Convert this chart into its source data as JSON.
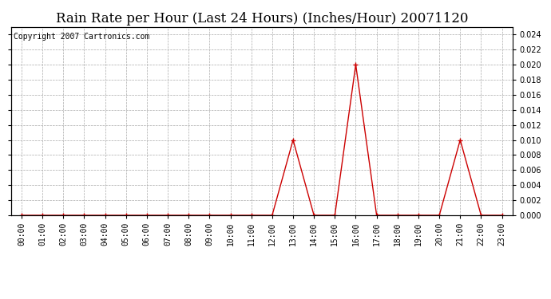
{
  "title": "Rain Rate per Hour (Last 24 Hours) (Inches/Hour) 20071120",
  "copyright_text": "Copyright 2007 Cartronics.com",
  "hours": [
    0,
    1,
    2,
    3,
    4,
    5,
    6,
    7,
    8,
    9,
    10,
    11,
    12,
    13,
    14,
    15,
    16,
    17,
    18,
    19,
    20,
    21,
    22,
    23
  ],
  "tick_labels": [
    "00:00",
    "01:00",
    "02:00",
    "03:00",
    "04:00",
    "05:00",
    "06:00",
    "07:00",
    "08:00",
    "09:00",
    "10:00",
    "11:00",
    "12:00",
    "13:00",
    "14:00",
    "15:00",
    "16:00",
    "17:00",
    "18:00",
    "19:00",
    "20:00",
    "21:00",
    "22:00",
    "23:00"
  ],
  "values": [
    0.0,
    0.0,
    0.0,
    0.0,
    0.0,
    0.0,
    0.0,
    0.0,
    0.0,
    0.0,
    0.0,
    0.0,
    0.0,
    0.01,
    0.0,
    0.0,
    0.02,
    0.0,
    0.0,
    0.0,
    0.0,
    0.01,
    0.0,
    0.0
  ],
  "line_color": "#cc0000",
  "marker": "+",
  "marker_size": 5,
  "marker_color": "#cc0000",
  "background_color": "#ffffff",
  "grid_color": "#aaaaaa",
  "ylim": [
    0.0,
    0.025
  ],
  "yticks": [
    0.0,
    0.002,
    0.004,
    0.006,
    0.008,
    0.01,
    0.012,
    0.014,
    0.016,
    0.018,
    0.02,
    0.022,
    0.024
  ],
  "title_fontsize": 12,
  "copyright_fontsize": 7,
  "tick_fontsize": 7,
  "xlim_left": -0.5,
  "xlim_right": 23.5
}
